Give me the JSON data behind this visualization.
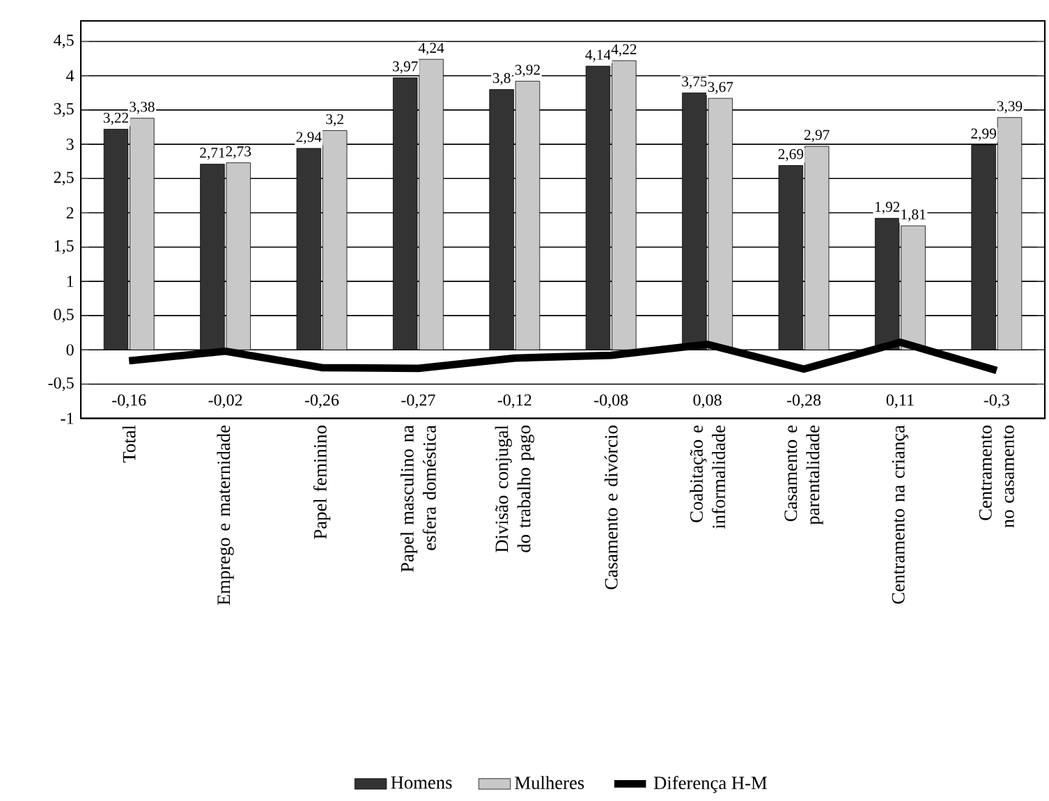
{
  "chart_data": {
    "type": "bar",
    "categories": [
      "Total",
      "Emprego e maternidade",
      "Papel feminino",
      "Papel masculino na esfera doméstica",
      "Divisão conjugal do trabalho pago",
      "Casamento e divórcio",
      "Coabitação e informalidade",
      "Casamento e parentalidade",
      "Centramento na criança",
      "Centramento no casamento"
    ],
    "series": [
      {
        "name": "Homens",
        "color": "#333333",
        "values": [
          3.22,
          2.71,
          2.94,
          3.97,
          3.8,
          4.14,
          3.75,
          2.69,
          1.92,
          2.99
        ],
        "value_labels": [
          "3,22",
          "2,71",
          "2,94",
          "3,97",
          "3,8",
          "4,14",
          "3,75",
          "2,69",
          "1,92",
          "2,99"
        ]
      },
      {
        "name": "Mulheres",
        "color": "#c8c8c8",
        "values": [
          3.38,
          2.73,
          3.2,
          4.24,
          3.92,
          4.22,
          3.67,
          2.97,
          1.81,
          3.39
        ],
        "value_labels": [
          "3,38",
          "2,73",
          "3,2",
          "4,24",
          "3,92",
          "4,22",
          "3,67",
          "2,97",
          "1,81",
          "3,39"
        ]
      },
      {
        "name": "Diferença H-M",
        "type": "line",
        "color": "#000000",
        "values": [
          -0.16,
          -0.02,
          -0.26,
          -0.27,
          -0.12,
          -0.08,
          0.08,
          -0.28,
          0.11,
          -0.3
        ],
        "value_labels": [
          "-0,16",
          "-0,02",
          "-0,26",
          "-0,27",
          "-0,12",
          "-0,08",
          "0,08",
          "-0,28",
          "0,11",
          "-0,3"
        ]
      }
    ],
    "ylim": [
      -1,
      4.8
    ],
    "yticks": [
      {
        "value": -1,
        "label": "-1"
      },
      {
        "value": -0.5,
        "label": "-0,5"
      },
      {
        "value": 0,
        "label": "0"
      },
      {
        "value": 0.5,
        "label": "0,5"
      },
      {
        "value": 1,
        "label": "1"
      },
      {
        "value": 1.5,
        "label": "1,5"
      },
      {
        "value": 2,
        "label": "2"
      },
      {
        "value": 2.5,
        "label": "2,5"
      },
      {
        "value": 3,
        "label": "3"
      },
      {
        "value": 3.5,
        "label": "3,5"
      },
      {
        "value": 4,
        "label": "4"
      },
      {
        "value": 4.5,
        "label": "4,5"
      }
    ],
    "grid": "y",
    "legend": "bottom"
  }
}
